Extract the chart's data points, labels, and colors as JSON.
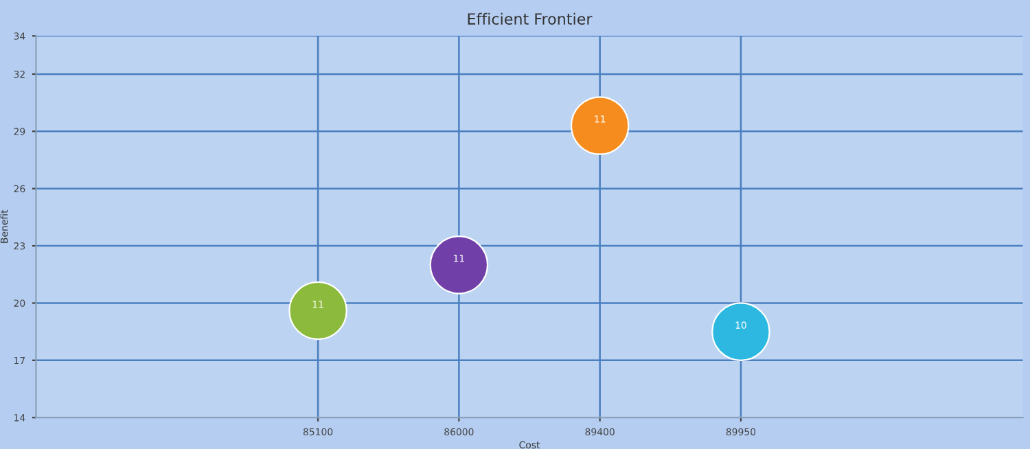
{
  "chart_data": {
    "type": "bubble",
    "title": "Efficient Frontier",
    "xlabel": "Cost",
    "ylabel": "Benefit",
    "categories": [
      null,
      null,
      "85100",
      "86000",
      "89400",
      "89950",
      null,
      null
    ],
    "values": [
      null,
      null,
      19.6,
      22.0,
      29.3,
      18.5,
      null,
      null
    ],
    "colors": [
      null,
      null,
      "#8cba3c",
      "#7040a8",
      "#f78c1e",
      "#2cb8e0",
      null,
      null
    ],
    "annotations": [
      {
        "text": "11",
        "x": "85100",
        "y": 19.6
      },
      {
        "text": "11",
        "x": "86000",
        "y": 22.0
      },
      {
        "text": "11",
        "x": "89400",
        "y": 29.3
      },
      {
        "text": "10",
        "x": "89950",
        "y": 18.5
      }
    ],
    "ylim": [
      14,
      34
    ],
    "yticks": [
      14,
      17,
      20,
      23,
      26,
      29,
      32,
      34
    ],
    "grid": true
  }
}
